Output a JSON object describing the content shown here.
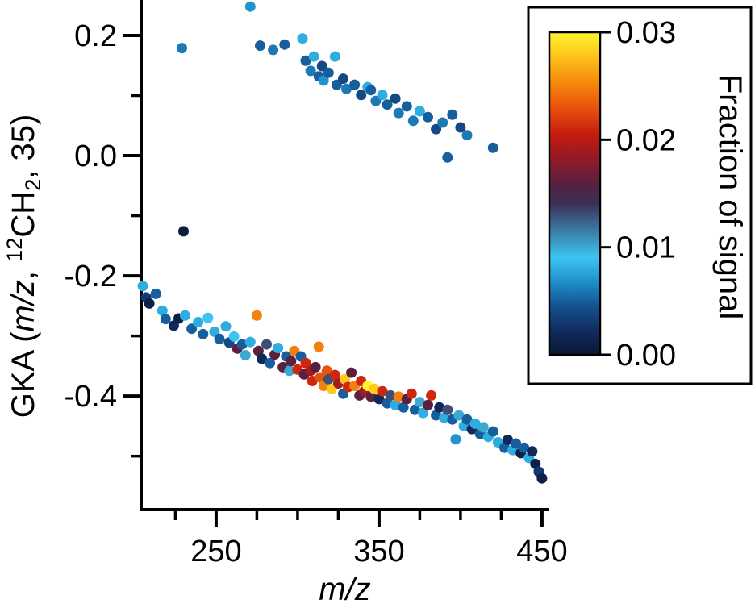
{
  "chart_data": {
    "type": "scatter",
    "xlabel_parts": [
      {
        "text": "m/z",
        "style": "italic"
      }
    ],
    "ylabel_parts": [
      {
        "text": "GKA (",
        "style": "normal"
      },
      {
        "text": "m/z",
        "style": "italic"
      },
      {
        "text": ", ",
        "style": "normal"
      },
      {
        "text": "12",
        "style": "super"
      },
      {
        "text": "CH",
        "style": "normal"
      },
      {
        "text": "2",
        "style": "sub"
      },
      {
        "text": ", 35)",
        "style": "normal"
      }
    ],
    "xlim": [
      204,
      454
    ],
    "ylim": [
      -0.589,
      0.259
    ],
    "x_major_ticks": [
      250,
      350,
      450
    ],
    "x_tick_labels": [
      "250",
      "350",
      "450"
    ],
    "x_minor_ticks": [
      225,
      275,
      300,
      325,
      375,
      400,
      425
    ],
    "y_major_ticks": [
      0.2,
      0,
      -0.2,
      -0.4
    ],
    "y_tick_labels": [
      "0.2",
      "0.0",
      "-0.2",
      "-0.4"
    ],
    "y_minor_ticks": [
      0.1,
      -0.1,
      -0.3,
      -0.5
    ],
    "colorbar": {
      "title": "Fraction of signal",
      "min": 0,
      "max": 0.03,
      "ticks": [
        0,
        0.01,
        0.02,
        0.03
      ],
      "tick_labels": [
        "0.00",
        "0.01",
        "0.02",
        "0.03"
      ],
      "stops": [
        {
          "t": 0,
          "color": "#0b1733"
        },
        {
          "t": 0.07,
          "color": "#102a5c"
        },
        {
          "t": 0.15,
          "color": "#15518f"
        },
        {
          "t": 0.22,
          "color": "#1d8ac6"
        },
        {
          "t": 0.3,
          "color": "#3cc5f2"
        },
        {
          "t": 0.36,
          "color": "#3a93ba"
        },
        {
          "t": 0.42,
          "color": "#3d5b86"
        },
        {
          "t": 0.47,
          "color": "#3c2f55"
        },
        {
          "t": 0.53,
          "color": "#57203f"
        },
        {
          "t": 0.6,
          "color": "#8c1b28"
        },
        {
          "t": 0.68,
          "color": "#c41a10"
        },
        {
          "t": 0.76,
          "color": "#e84e0c"
        },
        {
          "t": 0.85,
          "color": "#f68d0e"
        },
        {
          "t": 0.93,
          "color": "#fdc71c"
        },
        {
          "t": 1,
          "color": "#fff42e"
        }
      ]
    },
    "points": [
      [
        229,
        0.179,
        0.006
      ],
      [
        271,
        0.248,
        0.007
      ],
      [
        277,
        0.183,
        0.005
      ],
      [
        285,
        0.176,
        0.006
      ],
      [
        292,
        0.185,
        0.005
      ],
      [
        303,
        0.195,
        0.008
      ],
      [
        305,
        0.158,
        0.005
      ],
      [
        308,
        0.141,
        0.006
      ],
      [
        310,
        0.165,
        0.008
      ],
      [
        313,
        0.132,
        0.005
      ],
      [
        315,
        0.149,
        0.004
      ],
      [
        316,
        0.125,
        0.007
      ],
      [
        319,
        0.138,
        0.005
      ],
      [
        323,
        0.165,
        0.008
      ],
      [
        324,
        0.118,
        0.005
      ],
      [
        328,
        0.128,
        0.004
      ],
      [
        330,
        0.111,
        0.006
      ],
      [
        335,
        0.118,
        0.005
      ],
      [
        339,
        0.101,
        0.004
      ],
      [
        343,
        0.114,
        0.008
      ],
      [
        345,
        0.109,
        0.005
      ],
      [
        348,
        0.091,
        0.006
      ],
      [
        352,
        0.101,
        0.008
      ],
      [
        355,
        0.085,
        0.005
      ],
      [
        360,
        0.095,
        0.004
      ],
      [
        362,
        0.071,
        0.006
      ],
      [
        367,
        0.082,
        0.005
      ],
      [
        371,
        0.058,
        0.006
      ],
      [
        375,
        0.074,
        0.008
      ],
      [
        380,
        0.064,
        0.005
      ],
      [
        385,
        0.044,
        0.004
      ],
      [
        389,
        0.055,
        0.006
      ],
      [
        392,
        -0.003,
        0.005
      ],
      [
        395,
        0.068,
        0.005
      ],
      [
        400,
        0.047,
        0.004
      ],
      [
        404,
        0.034,
        0.006
      ],
      [
        420,
        0.013,
        0.005
      ],
      [
        230,
        -0.126,
        0.0005
      ],
      [
        205,
        -0.217,
        0.008
      ],
      [
        207,
        -0.236,
        0.003
      ],
      [
        209,
        -0.246,
        0.001
      ],
      [
        213,
        -0.23,
        0.005
      ],
      [
        217,
        -0.258,
        0.008
      ],
      [
        219,
        -0.272,
        0.005
      ],
      [
        224,
        -0.283,
        0.002
      ],
      [
        227,
        -0.271,
        0.001
      ],
      [
        231,
        -0.266,
        0.008
      ],
      [
        235,
        -0.288,
        0.005
      ],
      [
        239,
        -0.277,
        0.008
      ],
      [
        242,
        -0.297,
        0.005
      ],
      [
        245,
        -0.27,
        0.009
      ],
      [
        249,
        -0.293,
        0.008
      ],
      [
        252,
        -0.305,
        0.005
      ],
      [
        256,
        -0.284,
        0.008
      ],
      [
        258,
        -0.311,
        0.004
      ],
      [
        261,
        -0.301,
        0.009
      ],
      [
        263,
        -0.321,
        0.016
      ],
      [
        266,
        -0.314,
        0.005
      ],
      [
        268,
        -0.332,
        0.01
      ],
      [
        271,
        -0.31,
        0.008
      ],
      [
        275,
        -0.266,
        0.025
      ],
      [
        276,
        -0.325,
        0.016
      ],
      [
        278,
        -0.338,
        0.002
      ],
      [
        281,
        -0.314,
        0.013
      ],
      [
        283,
        -0.345,
        0.005
      ],
      [
        286,
        -0.331,
        0.016
      ],
      [
        288,
        -0.32,
        0.008
      ],
      [
        291,
        -0.352,
        0.016
      ],
      [
        293,
        -0.334,
        0.005
      ],
      [
        295,
        -0.358,
        0.01
      ],
      [
        296,
        -0.342,
        0.016
      ],
      [
        298,
        -0.325,
        0.025
      ],
      [
        300,
        -0.356,
        0.021
      ],
      [
        302,
        -0.334,
        0.005
      ],
      [
        304,
        -0.364,
        0.016
      ],
      [
        305,
        -0.345,
        0.021
      ],
      [
        308,
        -0.358,
        0.019
      ],
      [
        309,
        -0.375,
        0.021
      ],
      [
        311,
        -0.352,
        0.016
      ],
      [
        313,
        -0.318,
        0.025
      ],
      [
        314,
        -0.369,
        0.023
      ],
      [
        316,
        -0.383,
        0.025
      ],
      [
        318,
        -0.358,
        0.023
      ],
      [
        319,
        -0.372,
        0.013
      ],
      [
        321,
        -0.388,
        0.028
      ],
      [
        323,
        -0.365,
        0.021
      ],
      [
        325,
        -0.379,
        0.019
      ],
      [
        328,
        -0.396,
        0.005
      ],
      [
        329,
        -0.372,
        0.028
      ],
      [
        331,
        -0.385,
        0.021
      ],
      [
        333,
        -0.361,
        0.016
      ],
      [
        335,
        -0.383,
        0.025
      ],
      [
        338,
        -0.399,
        0.016
      ],
      [
        339,
        -0.375,
        0.021
      ],
      [
        341,
        -0.392,
        0.019
      ],
      [
        343,
        -0.383,
        0.03
      ],
      [
        345,
        -0.401,
        0.016
      ],
      [
        347,
        -0.388,
        0.028
      ],
      [
        350,
        -0.405,
        0.002
      ],
      [
        352,
        -0.392,
        0.021
      ],
      [
        355,
        -0.412,
        0.005
      ],
      [
        357,
        -0.399,
        0.013
      ],
      [
        360,
        -0.415,
        0.008
      ],
      [
        362,
        -0.401,
        0.025
      ],
      [
        365,
        -0.419,
        0.005
      ],
      [
        367,
        -0.405,
        0.016
      ],
      [
        370,
        -0.396,
        0.021
      ],
      [
        372,
        -0.423,
        0.005
      ],
      [
        375,
        -0.41,
        0.01
      ],
      [
        377,
        -0.428,
        0.008
      ],
      [
        380,
        -0.415,
        0.016
      ],
      [
        382,
        -0.399,
        0.021
      ],
      [
        385,
        -0.432,
        0.005
      ],
      [
        387,
        -0.419,
        0.002
      ],
      [
        390,
        -0.436,
        0.008
      ],
      [
        392,
        -0.423,
        0.013
      ],
      [
        395,
        -0.439,
        0.005
      ],
      [
        397,
        -0.472,
        0.007
      ],
      [
        399,
        -0.432,
        0.01
      ],
      [
        402,
        -0.45,
        0.008
      ],
      [
        404,
        -0.439,
        0.005
      ],
      [
        407,
        -0.455,
        0.002
      ],
      [
        409,
        -0.446,
        0.008
      ],
      [
        412,
        -0.463,
        0.005
      ],
      [
        414,
        -0.452,
        0.01
      ],
      [
        417,
        -0.468,
        0.008
      ],
      [
        420,
        -0.459,
        0.005
      ],
      [
        423,
        -0.477,
        0.008
      ],
      [
        427,
        -0.486,
        0.005
      ],
      [
        429,
        -0.473,
        0.002
      ],
      [
        432,
        -0.49,
        0.008
      ],
      [
        434,
        -0.479,
        0.005
      ],
      [
        437,
        -0.495,
        0.001
      ],
      [
        439,
        -0.486,
        0.005
      ],
      [
        442,
        -0.503,
        0.008
      ],
      [
        444,
        -0.492,
        0.002
      ],
      [
        446,
        -0.513,
        0.001
      ],
      [
        448,
        -0.526,
        0.003
      ],
      [
        450,
        -0.537,
        0.001
      ]
    ]
  }
}
